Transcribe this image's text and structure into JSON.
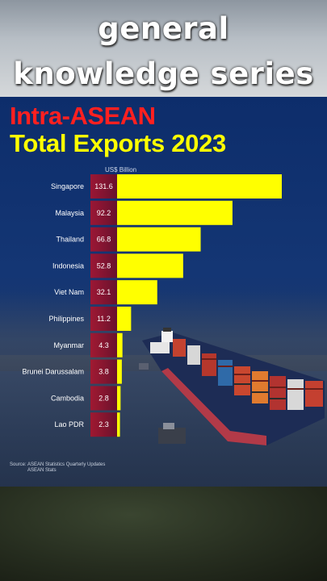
{
  "banner": {
    "line1": "general",
    "line2": "knowledge series"
  },
  "card": {
    "title_line1": "Intra-ASEAN",
    "title_line2": "Total Exports 2023",
    "source_line1": "Source: ASEAN Statistics Quarterly Updates",
    "source_line2": "ASEAN Stats"
  },
  "chart_data": {
    "type": "bar",
    "orientation": "horizontal",
    "unit": "US$ Billion",
    "categories": [
      "Singapore",
      "Malaysia",
      "Thailand",
      "Indonesia",
      "Viet Nam",
      "Philippines",
      "Myanmar",
      "Brunei Darussalam",
      "Cambodia",
      "Lao PDR"
    ],
    "values": [
      131.6,
      92.2,
      66.8,
      52.8,
      32.1,
      11.2,
      4.3,
      3.8,
      2.8,
      2.3
    ],
    "value_labels": [
      "131.6",
      "92.2",
      "66.8",
      "52.8",
      "32.1",
      "11.2",
      "4.3",
      "3.8",
      "2.8",
      "2.3"
    ],
    "xlim": [
      0,
      131.6
    ],
    "bar_color": "#ffff00",
    "label_bg_color": "#b3122a"
  }
}
